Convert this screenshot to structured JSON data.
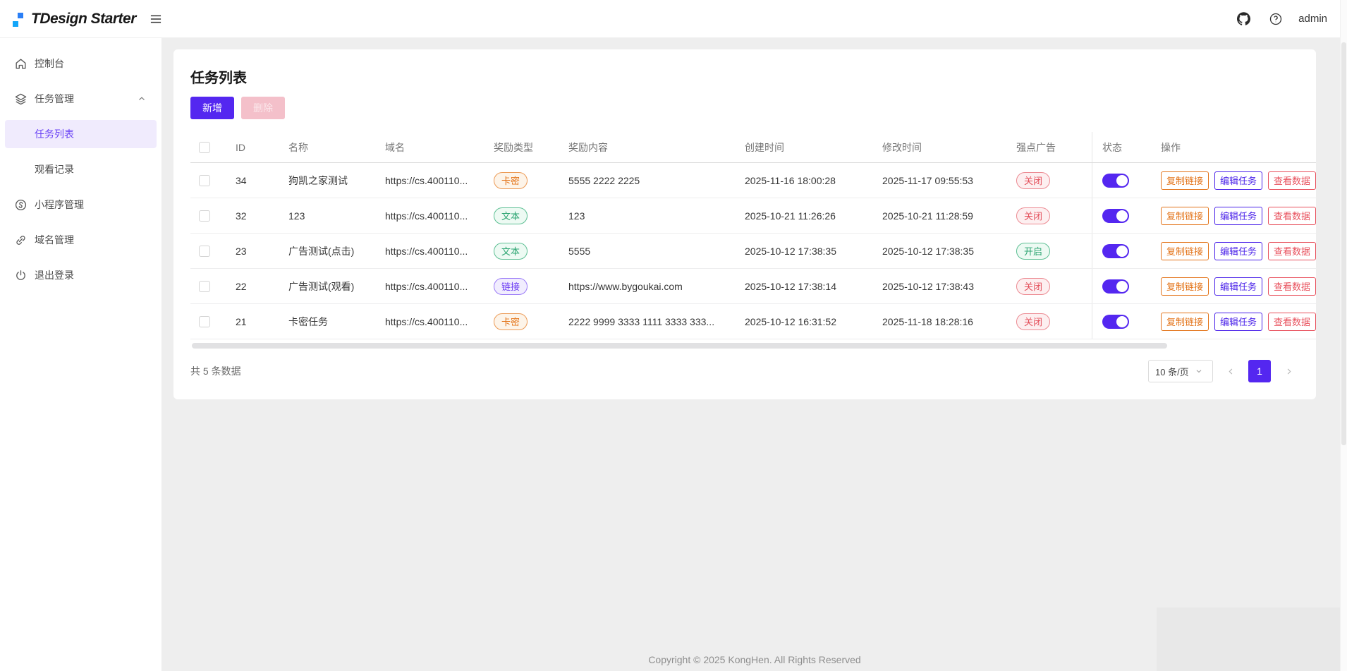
{
  "colors": {
    "brand": "#5427F0",
    "success": "#2BA471",
    "warning": "#E37318",
    "danger": "#E34D59"
  },
  "header": {
    "logo_text": "TDesign Starter",
    "username": "admin"
  },
  "sidebar": {
    "items": [
      {
        "label": "控制台"
      },
      {
        "label": "任务管理"
      },
      {
        "label": "任务列表"
      },
      {
        "label": "观看记录"
      },
      {
        "label": "小程序管理"
      },
      {
        "label": "域名管理"
      },
      {
        "label": "退出登录"
      }
    ]
  },
  "page": {
    "title": "任务列表",
    "add_button": "新增",
    "delete_button": "删除"
  },
  "table": {
    "headers": {
      "id": "ID",
      "name": "名称",
      "domain": "域名",
      "reward_type": "奖励类型",
      "reward_content": "奖励内容",
      "created": "创建时间",
      "modified": "修改时间",
      "force_ad": "强点广告",
      "status": "状态",
      "actions": "操作"
    },
    "action_labels": [
      "复制链接",
      "编辑任务",
      "查看数据"
    ],
    "rows": [
      {
        "id": "34",
        "name": "狗凯之家测试",
        "domain": "https://cs.400110...",
        "reward_type": "卡密",
        "reward_variant": "warning",
        "reward_content": "5555 2222 2225",
        "created": "2025-11-16 18:00:28",
        "modified": "2025-11-17 09:55:53",
        "force_ad": "关闭",
        "force_ad_variant": "danger",
        "status_on": true
      },
      {
        "id": "32",
        "name": "123",
        "domain": "https://cs.400110...",
        "reward_type": "文本",
        "reward_variant": "success",
        "reward_content": "123",
        "created": "2025-10-21 11:26:26",
        "modified": "2025-10-21 11:28:59",
        "force_ad": "关闭",
        "force_ad_variant": "danger",
        "status_on": true
      },
      {
        "id": "23",
        "name": "广告测试(点击)",
        "domain": "https://cs.400110...",
        "reward_type": "文本",
        "reward_variant": "success",
        "reward_content": "5555",
        "created": "2025-10-12 17:38:35",
        "modified": "2025-10-12 17:38:35",
        "force_ad": "开启",
        "force_ad_variant": "success",
        "status_on": true
      },
      {
        "id": "22",
        "name": "广告测试(观看)",
        "domain": "https://cs.400110...",
        "reward_type": "链接",
        "reward_variant": "brand",
        "reward_content": "https://www.bygoukai.com",
        "created": "2025-10-12 17:38:14",
        "modified": "2025-10-12 17:38:43",
        "force_ad": "关闭",
        "force_ad_variant": "danger",
        "status_on": true
      },
      {
        "id": "21",
        "name": "卡密任务",
        "domain": "https://cs.400110...",
        "reward_type": "卡密",
        "reward_variant": "warning",
        "reward_content": "2222 9999 3333 1111 3333 333...",
        "created": "2025-10-12 16:31:52",
        "modified": "2025-11-18 18:28:16",
        "force_ad": "关闭",
        "force_ad_variant": "danger",
        "status_on": true
      }
    ],
    "footer": {
      "total": "共 5 条数据",
      "page_size": "10 条/页",
      "current_page": "1"
    }
  },
  "footer": {
    "copyright": "Copyright © 2025 KongHen. All Rights Reserved"
  }
}
